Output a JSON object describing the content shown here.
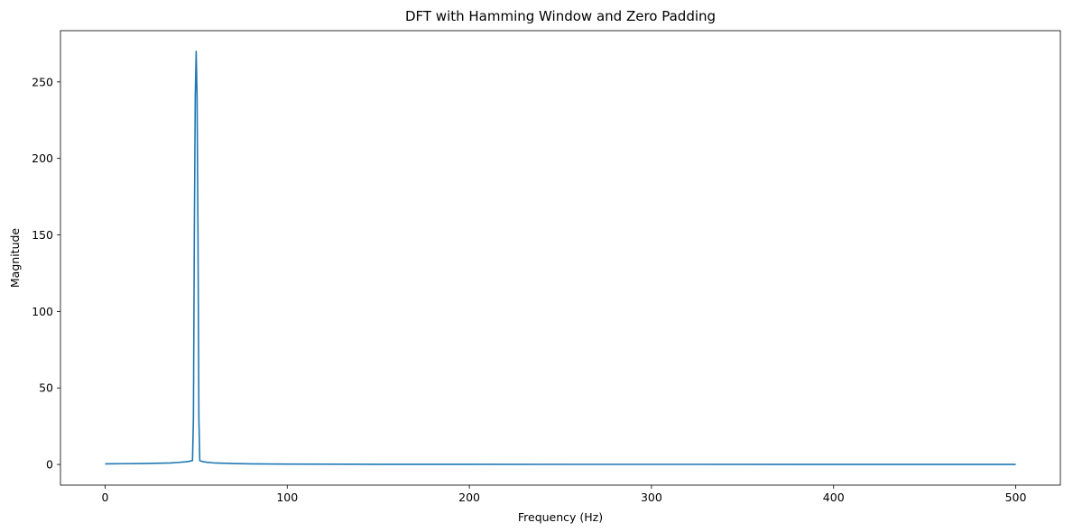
{
  "chart_data": {
    "type": "line",
    "title": "DFT with Hamming Window and Zero Padding",
    "xlabel": "Frequency (Hz)",
    "ylabel": "Magnitude",
    "xlim": [
      -24.5,
      524.5
    ],
    "ylim": [
      -13.5,
      283.5
    ],
    "xticks": [
      0,
      100,
      200,
      300,
      400,
      500
    ],
    "yticks": [
      0,
      50,
      100,
      150,
      200,
      250
    ],
    "grid": false,
    "series": [
      {
        "color": "#1f77b4",
        "x": [
          0,
          10,
          20,
          30,
          36,
          40,
          44,
          46,
          47,
          48,
          48.5,
          49,
          49.5,
          50,
          50.5,
          51,
          51.5,
          52,
          53,
          54,
          56,
          60,
          70,
          80,
          100,
          150,
          200,
          300,
          400,
          500
        ],
        "y": [
          0.4,
          0.5,
          0.6,
          0.8,
          1.0,
          1.3,
          1.7,
          2.0,
          2.3,
          2.5,
          30,
          150,
          240,
          270,
          240,
          150,
          30,
          2.4,
          2.1,
          1.8,
          1.4,
          1.0,
          0.6,
          0.4,
          0.25,
          0.12,
          0.08,
          0.05,
          0.04,
          0.03
        ]
      }
    ]
  }
}
